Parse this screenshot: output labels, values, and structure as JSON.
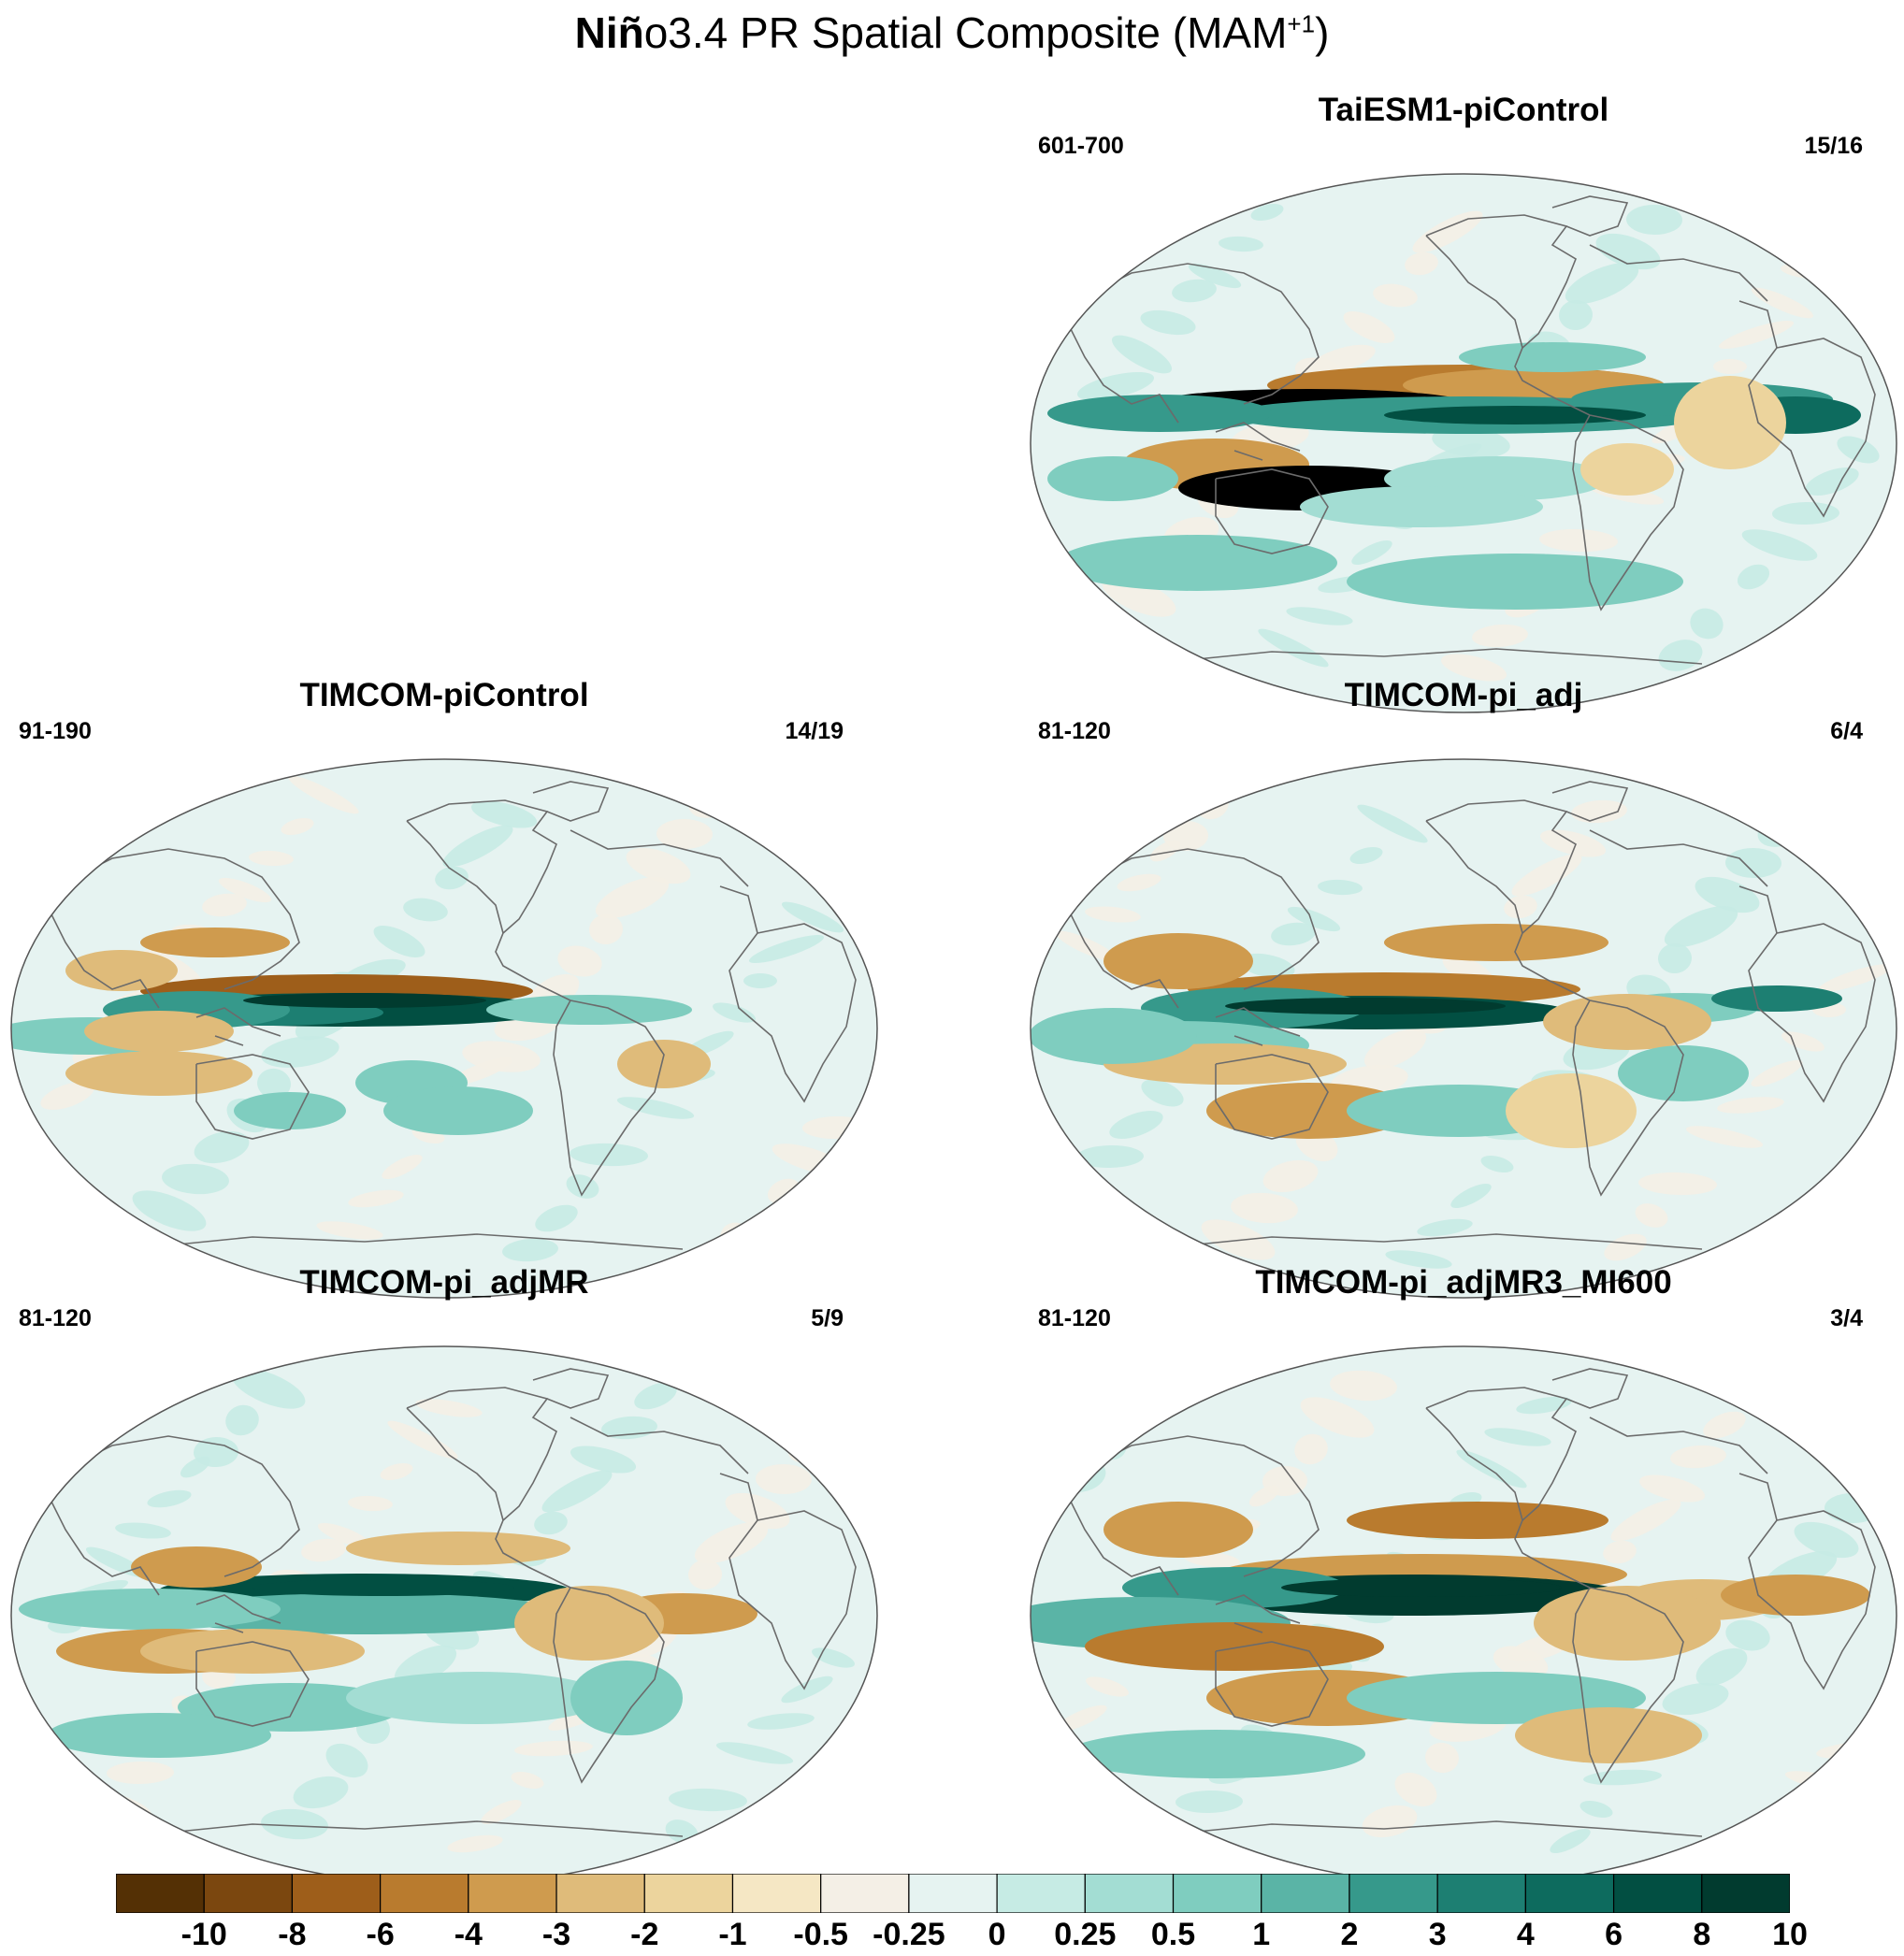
{
  "title": {
    "bold": "Niñ",
    "rest": "o3.4 PR Spatial Composite (MAM",
    "superscript": "+1",
    "close": ")"
  },
  "panels": [
    {
      "title": "TaiESM1-piControl",
      "years": "601-700",
      "events": "15/16"
    },
    {
      "title": "TIMCOM-piControl",
      "years": "91-190",
      "events": "14/19"
    },
    {
      "title": "TIMCOM-pi_adj",
      "years": "81-120",
      "events": "6/4"
    },
    {
      "title": "TIMCOM-pi_adjMR",
      "years": "81-120",
      "events": "5/9"
    },
    {
      "title": "TIMCOM-pi_adjMR3_MI600",
      "years": "81-120",
      "events": "3/4"
    }
  ],
  "colorbar": {
    "labels": [
      "-10",
      "-8",
      "-6",
      "-4",
      "-3",
      "-2",
      "-1",
      "-0.5",
      "-0.25",
      "0",
      "0.25",
      "0.5",
      "1",
      "2",
      "3",
      "4",
      "6",
      "8",
      "10"
    ],
    "colors": [
      "#543005",
      "#7b470f",
      "#9e5e1a",
      "#b97b2e",
      "#cf9b4e",
      "#dfbb7a",
      "#ecd49d",
      "#f5e7c4",
      "#f4efe6",
      "#e6f3f1",
      "#c6ebe4",
      "#a3ddd3",
      "#7fcdbf",
      "#5ab4a6",
      "#36998b",
      "#1d7f72",
      "#0d6b5e",
      "#024f42",
      "#013b2f"
    ]
  }
}
